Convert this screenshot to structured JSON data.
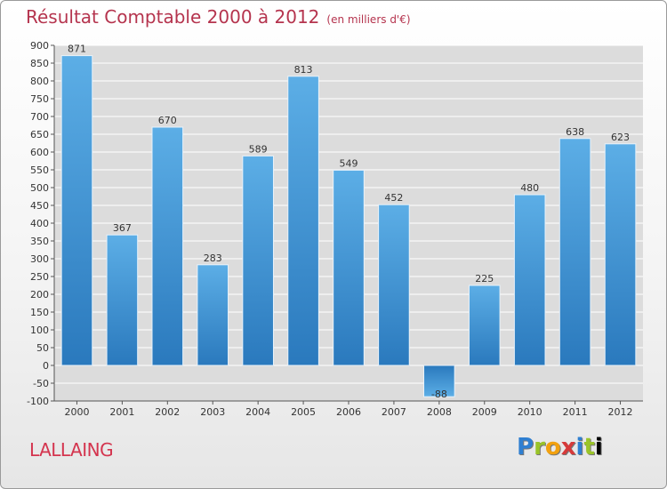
{
  "header": {
    "title": "Résultat Comptable 2000 à 2012",
    "subtitle": "(en milliers d'€)"
  },
  "footer": {
    "commune": "LALLAING",
    "brand_letters": [
      "P",
      "r",
      "o",
      "x",
      "i",
      "t",
      "i"
    ]
  },
  "chart_data": {
    "type": "bar",
    "title": "Résultat Comptable 2000 à 2012",
    "subtitle": "(en milliers d'€)",
    "categories": [
      "2000",
      "2001",
      "2002",
      "2003",
      "2004",
      "2005",
      "2006",
      "2007",
      "2008",
      "2009",
      "2010",
      "2011",
      "2012"
    ],
    "values": [
      871,
      367,
      670,
      283,
      589,
      813,
      549,
      452,
      -88,
      225,
      480,
      638,
      623
    ],
    "value_labels": [
      "871",
      "367",
      "670",
      "283",
      "589",
      "813",
      "549",
      "452",
      "-88",
      "225",
      "480",
      "638",
      "623"
    ],
    "y_ticks": [
      "-100",
      "-50",
      "0",
      "50",
      "100",
      "150",
      "200",
      "250",
      "300",
      "350",
      "400",
      "450",
      "500",
      "550",
      "600",
      "650",
      "700",
      "750",
      "800",
      "850",
      "900"
    ],
    "ylim": [
      -100,
      900
    ],
    "y_step": 50,
    "grid": true,
    "xlabel": "",
    "ylabel": "",
    "colors": {
      "bar_top": "#5caee6",
      "bar_bottom": "#2a79bd",
      "grid": "#ffffff",
      "plot_bg": "#dcdcdc"
    }
  }
}
